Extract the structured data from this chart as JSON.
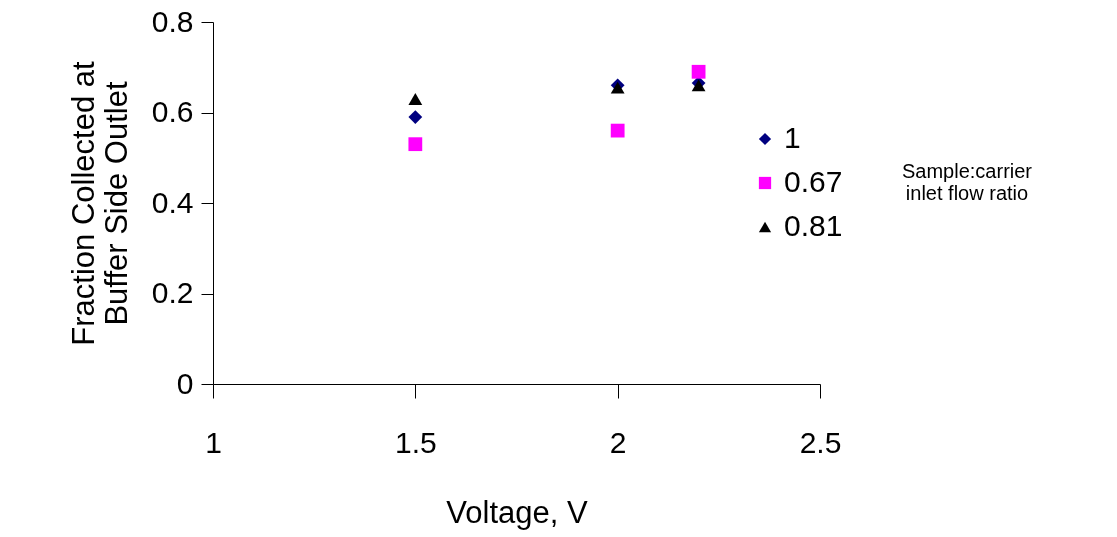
{
  "chart_data": {
    "type": "scatter",
    "xlabel": "Voltage, V",
    "ylabel": "Fraction Collected at\nBuffer Side Outlet",
    "legend_title": "Sample:carrier\ninlet flow ratio",
    "x": [
      1.5,
      2.0,
      2.2
    ],
    "series": [
      {
        "name": "1",
        "color": "#000080",
        "marker": "diamond",
        "values": [
          0.59,
          0.66,
          0.665
        ]
      },
      {
        "name": "0.67",
        "color": "#ff00ff",
        "marker": "square",
        "values": [
          0.53,
          0.56,
          0.69
        ]
      },
      {
        "name": "0.81",
        "color": "#000000",
        "marker": "triangle",
        "values": [
          0.63,
          0.655,
          0.66
        ]
      }
    ],
    "xlim": [
      1,
      2.5
    ],
    "xticks": [
      1,
      1.5,
      2,
      2.5
    ],
    "ylim": [
      0,
      0.8
    ],
    "yticks": [
      0,
      0.2,
      0.4,
      0.6,
      0.8
    ],
    "grid": false,
    "legend": "right"
  }
}
